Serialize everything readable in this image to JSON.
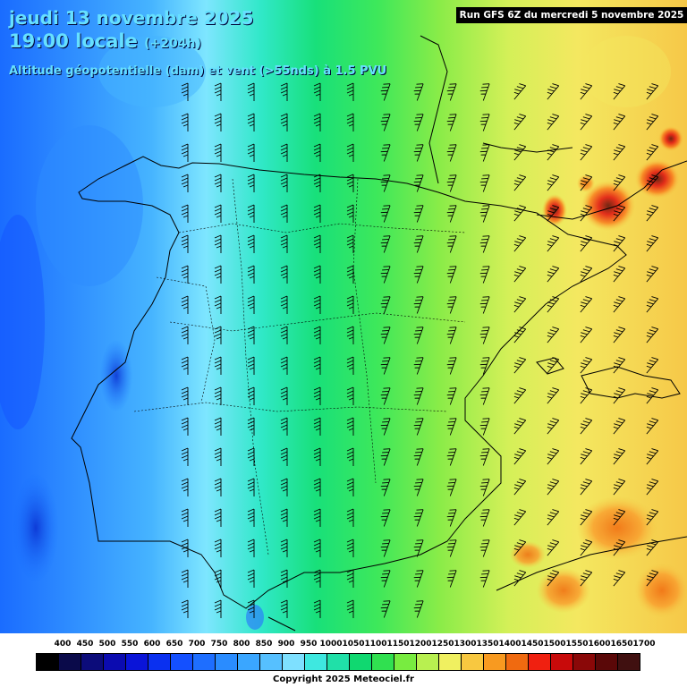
{
  "header": {
    "date": "jeudi 13 novembre 2025",
    "time": "19:00 locale",
    "lead": "(+204h)",
    "parameter": "Altitude géopotentielle (dam) et vent (>55nds) à 1.5 PVU",
    "run": "Run GFS 6Z du mercredi 5 novembre 2025"
  },
  "legend": {
    "labels": [
      "400",
      "450",
      "500",
      "550",
      "600",
      "650",
      "700",
      "750",
      "800",
      "850",
      "900",
      "950",
      "1000",
      "1050",
      "1100",
      "1150",
      "1200",
      "1250",
      "1300",
      "1350",
      "1400",
      "1450",
      "1500",
      "1550",
      "1600",
      "1650",
      "1700"
    ],
    "colors": [
      "#000000",
      "#0a0a4a",
      "#0c0c7a",
      "#0b0bb0",
      "#0a14d8",
      "#0a30f0",
      "#1450ff",
      "#1e6eff",
      "#2a8cff",
      "#3aa6ff",
      "#56c0ff",
      "#7ee0ff",
      "#3ee8e0",
      "#20e0a8",
      "#10d870",
      "#30e050",
      "#78ec40",
      "#b8f050",
      "#f0f060",
      "#f8c840",
      "#f89a20",
      "#f06a10",
      "#f02010",
      "#c80a0a",
      "#8a0808",
      "#5a0808",
      "#401010"
    ]
  },
  "copyright": "Copyright 2025 Meteociel.fr"
}
